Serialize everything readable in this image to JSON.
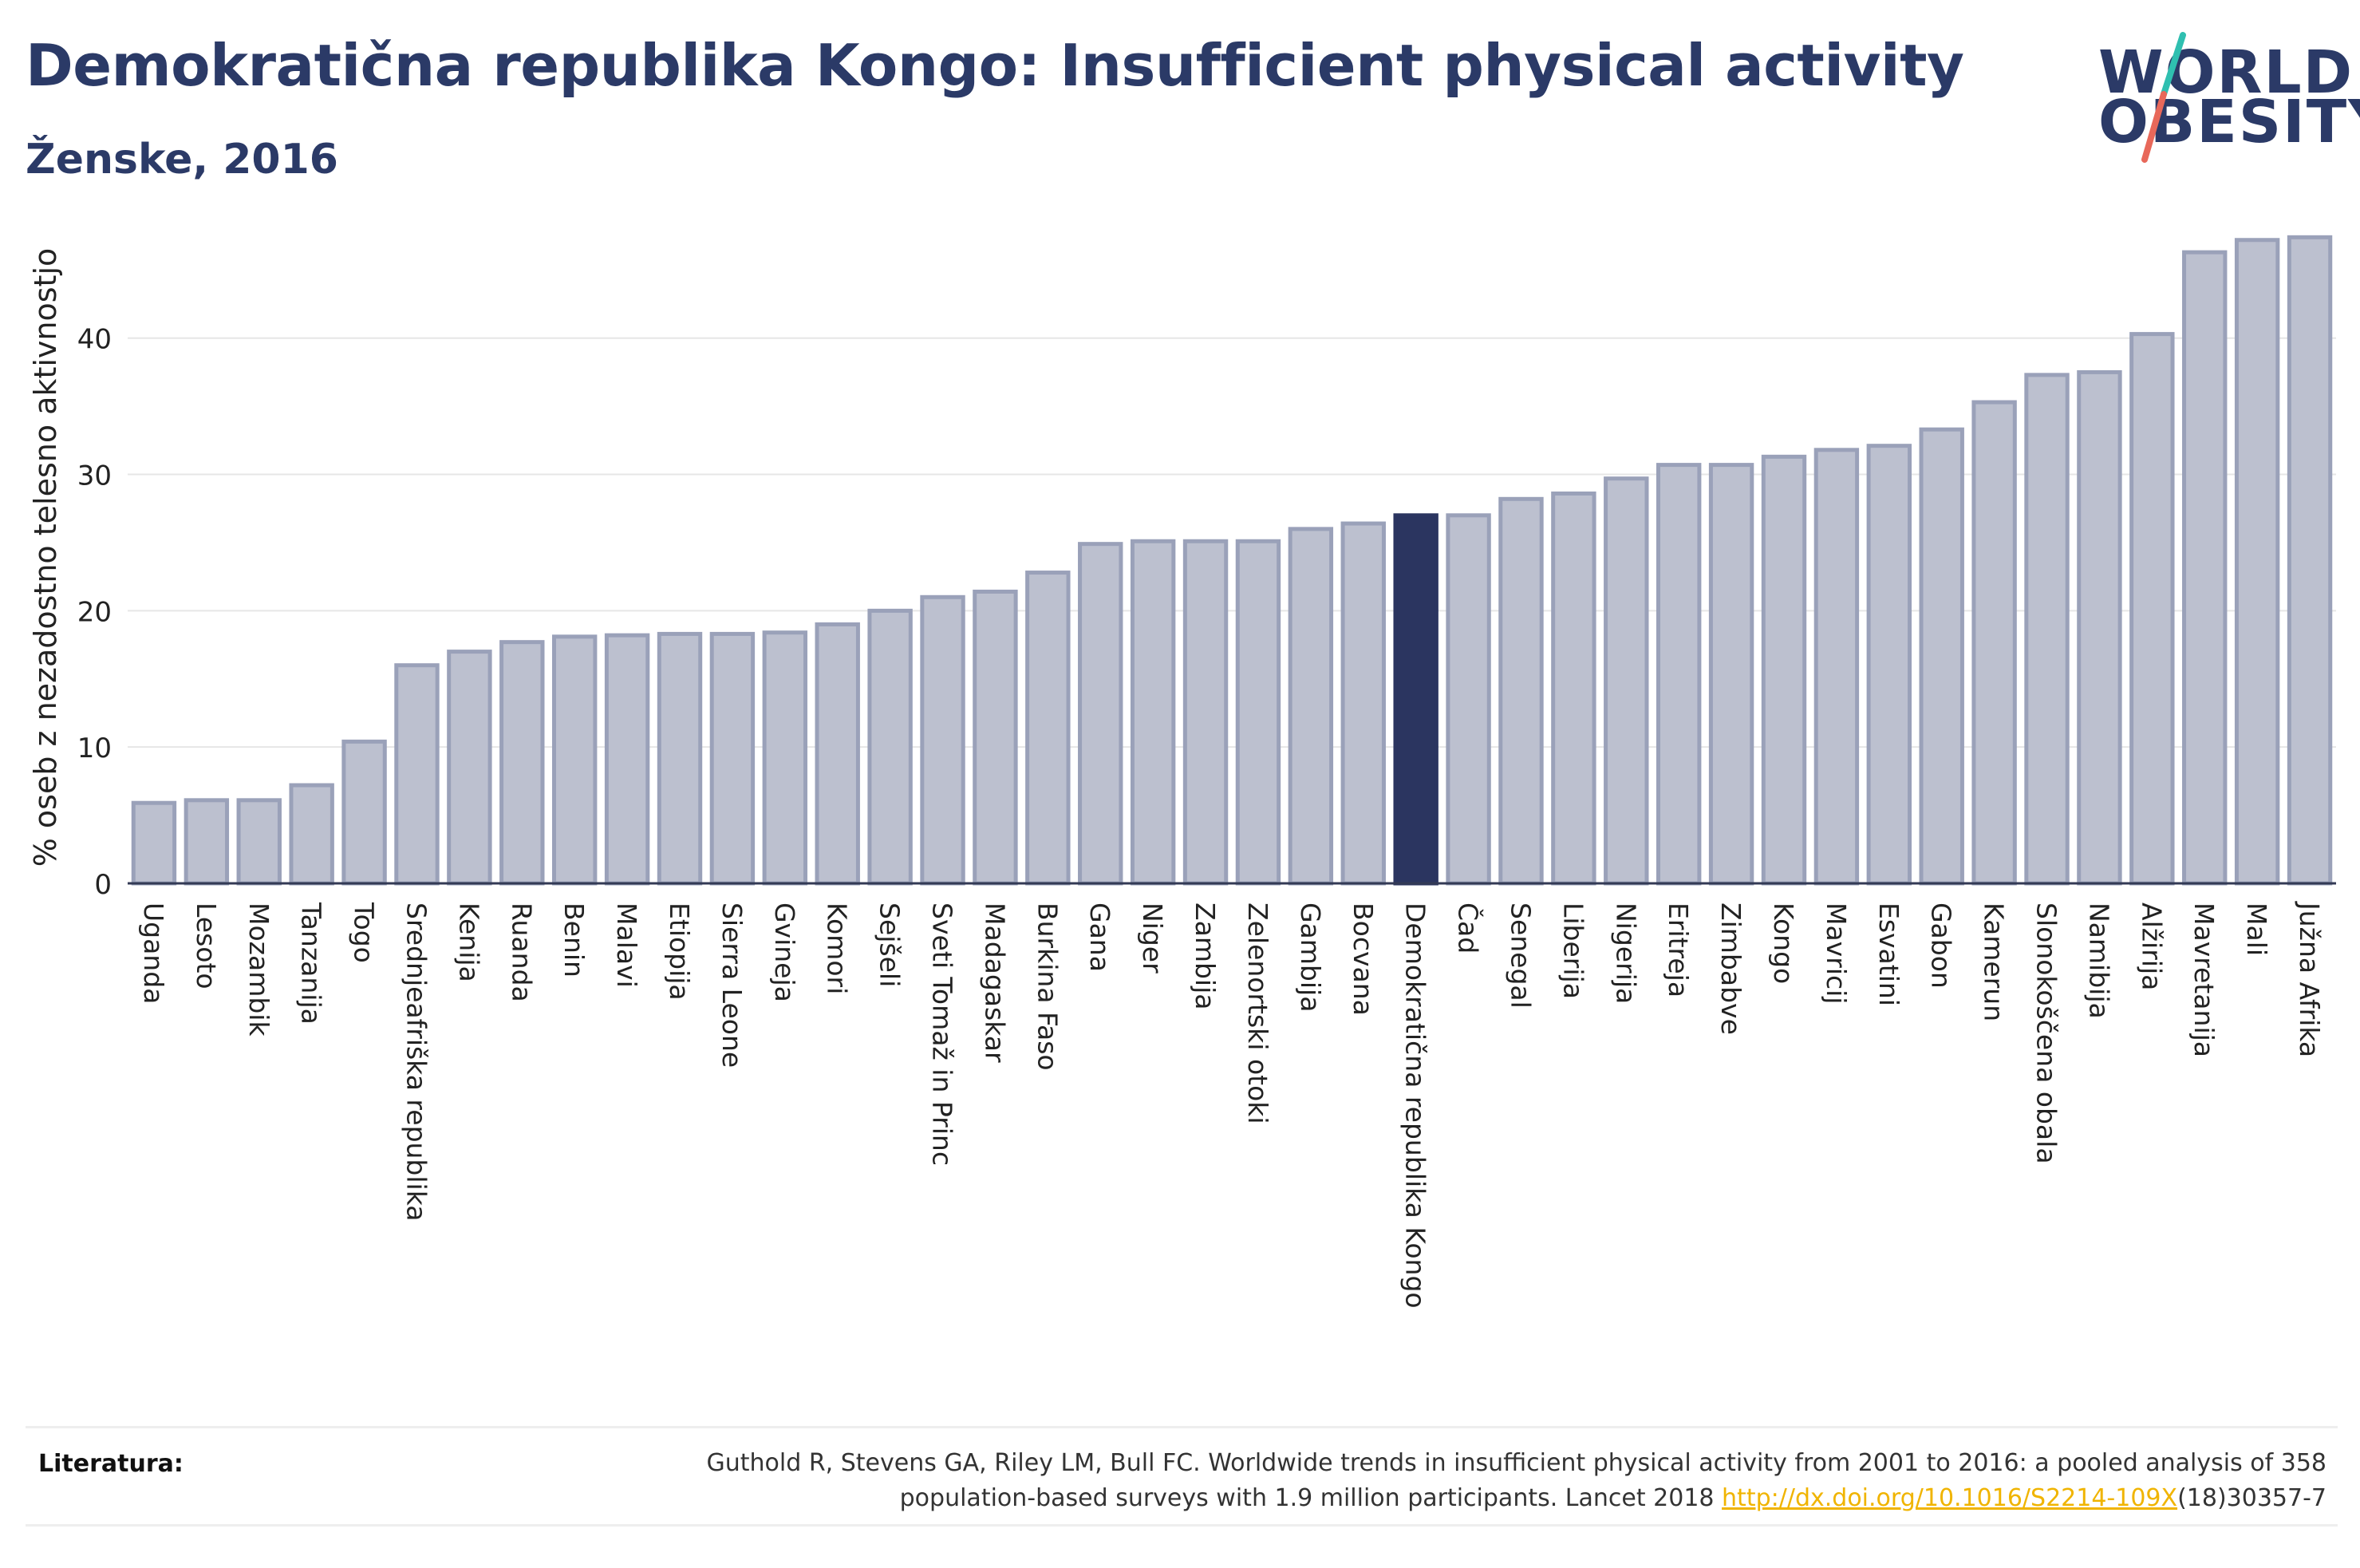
{
  "header": {
    "title": "Demokratična republika Kongo: Insufficient physical activity",
    "subtitle": "Ženske, 2016"
  },
  "logo": {
    "line1": "WORLD",
    "line2": "OBESITY"
  },
  "colors": {
    "bar": "#bcc0cf",
    "bar_border": "#9aa1b9",
    "highlight": "#2b3560",
    "axis": "#333a55",
    "grid": "#e6e6e6",
    "link": "#f0b400",
    "logo_slash_top": "#2fbfb0",
    "logo_slash_bottom": "#e8685a"
  },
  "chart_data": {
    "type": "bar",
    "title": "Demokratična republika Kongo: Insufficient physical activity",
    "subtitle": "Ženske, 2016",
    "xlabel": "",
    "ylabel": "% oseb z nezadostno telesno aktivnostjo",
    "ylim": [
      0,
      49
    ],
    "yticks": [
      0,
      10,
      20,
      30,
      40
    ],
    "grid": true,
    "highlight": "Demokratična republika Kongo",
    "categories": [
      "Uganda",
      "Lesoto",
      "Mozambik",
      "Tanzanija",
      "Togo",
      "Srednjeafriška republika",
      "Kenija",
      "Ruanda",
      "Benin",
      "Malavi",
      "Etiopija",
      "Sierra Leone",
      "Gvineja",
      "Komori",
      "Sejšeli",
      "Sveti Tomaž in Princ",
      "Madagaskar",
      "Burkina Faso",
      "Gana",
      "Niger",
      "Zambija",
      "Zelenortski otoki",
      "Gambija",
      "Bocvana",
      "Demokratična republika Kongo",
      "Čad",
      "Senegal",
      "Liberija",
      "Nigerija",
      "Eritreja",
      "Zimbabve",
      "Kongo",
      "Mavricij",
      "Esvatini",
      "Gabon",
      "Kamerun",
      "Slonokoščena obala",
      "Namibija",
      "Alžirija",
      "Mavretanija",
      "Mali",
      "Južna Afrika"
    ],
    "values": [
      5.9,
      6.1,
      6.1,
      7.2,
      10.4,
      16.0,
      17.0,
      17.7,
      18.1,
      18.2,
      18.3,
      18.3,
      18.4,
      19.0,
      20.0,
      21.0,
      21.4,
      22.8,
      24.9,
      25.1,
      25.1,
      25.1,
      26.0,
      26.4,
      27.0,
      27.0,
      28.2,
      28.6,
      29.7,
      30.7,
      30.7,
      31.3,
      31.8,
      32.1,
      33.3,
      35.3,
      37.3,
      37.5,
      40.3,
      46.3,
      47.2,
      47.4
    ]
  },
  "footer": {
    "label": "Literatura:",
    "citation_line1": "Guthold R, Stevens GA, Riley LM, Bull FC. Worldwide trends in insufficient physical activity from 2001 to 2016: a pooled analysis of 358",
    "citation_line2_pre": "population-based surveys with 1.9 million participants. Lancet 2018 ",
    "citation_link": "http://dx.doi.org/10.1016/S2214-109X",
    "citation_line2_post": "(18)30357-7"
  }
}
